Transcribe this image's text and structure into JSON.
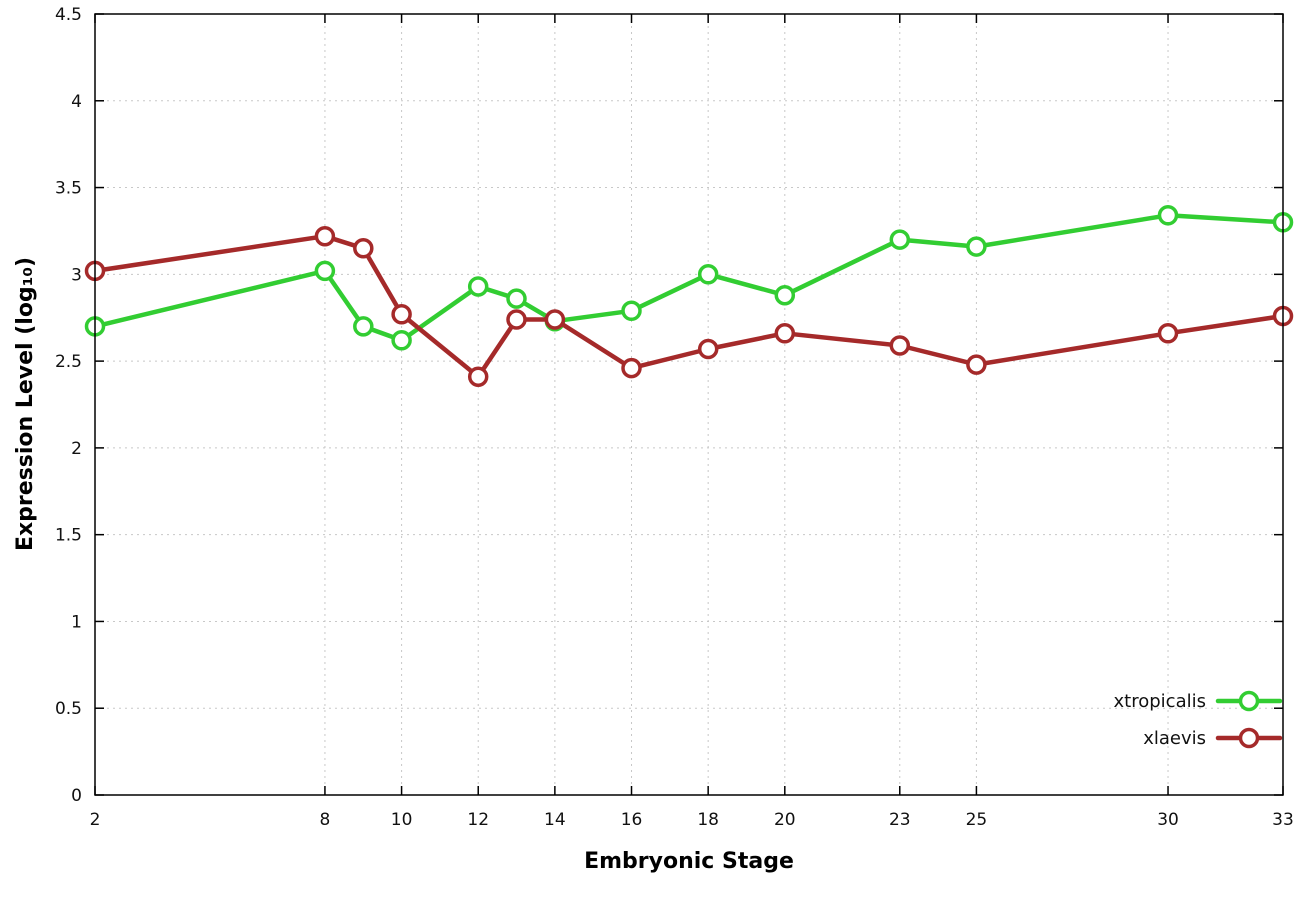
{
  "chart_data": {
    "type": "line",
    "title": "",
    "xlabel": "Embryonic Stage",
    "ylabel": "Expression Level (log₁₀)",
    "xlim": [
      2,
      33
    ],
    "ylim": [
      0,
      4.5
    ],
    "x_ticks": [
      2,
      8,
      10,
      12,
      14,
      16,
      18,
      20,
      23,
      25,
      30,
      33
    ],
    "y_ticks": [
      0,
      0.5,
      1,
      1.5,
      2,
      2.5,
      3,
      3.5,
      4,
      4.5
    ],
    "grid": true,
    "legend_position": "bottom-right",
    "background_color": "#ffffff",
    "x": [
      2,
      8,
      9,
      10,
      12,
      13,
      14,
      16,
      18,
      20,
      23,
      25,
      30,
      33
    ],
    "series": [
      {
        "name": "xtropicalis",
        "color": "#32cd32",
        "values": [
          2.7,
          3.02,
          2.7,
          2.62,
          2.93,
          2.86,
          2.73,
          2.79,
          3.0,
          2.88,
          3.2,
          3.16,
          3.34,
          3.3
        ]
      },
      {
        "name": "xlaevis",
        "color": "#a52a2a",
        "values": [
          3.02,
          3.22,
          3.15,
          2.77,
          2.41,
          2.74,
          2.74,
          2.46,
          2.57,
          2.66,
          2.59,
          2.48,
          2.66,
          2.76
        ]
      }
    ]
  }
}
